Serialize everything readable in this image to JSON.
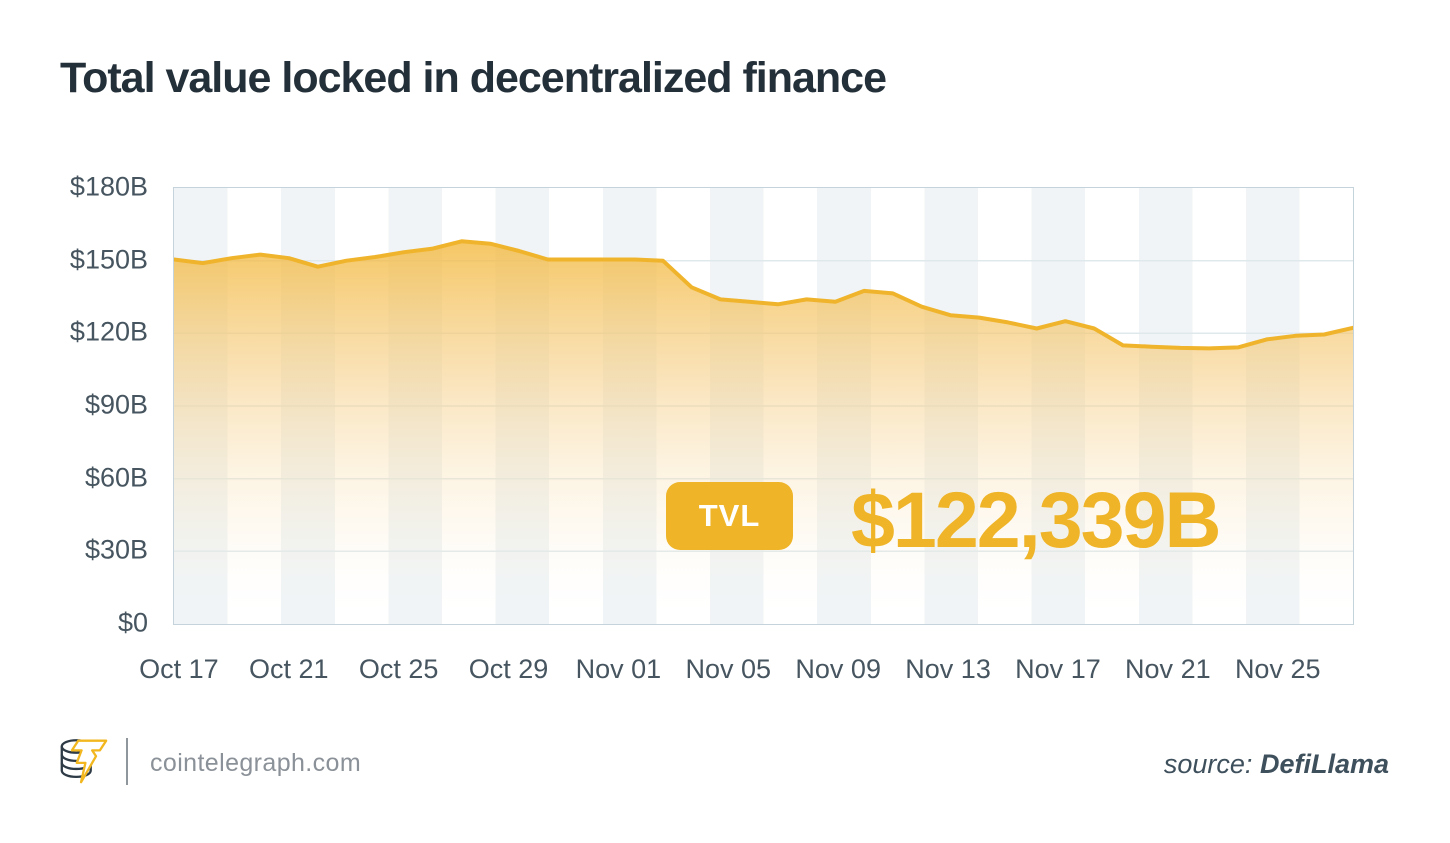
{
  "title": "Total value locked in decentralized finance",
  "callout": {
    "badge_label": "TVL",
    "value": "$122,339B"
  },
  "footer": {
    "brand": "cointelegraph.com",
    "source_label": "source:",
    "source_name": "DefiLlama"
  },
  "colors": {
    "accent_yellow": "#EFB428",
    "line_yellow": "#F0B42C",
    "title_text": "#243039",
    "axis_text": "#46555F",
    "stripe_band": "#F0F4F6",
    "grid_line": "#DFE9EC",
    "plot_border": "#C5D4DC",
    "footer_text": "#8B9198",
    "source_text": "#3F505D"
  },
  "chart_data": {
    "type": "area",
    "title": "Total value locked in decentralized finance",
    "xlabel": "",
    "ylabel": "",
    "ylim": [
      0,
      180
    ],
    "grid": "horizontal gridlines every 30B; alternating vertical background bands; boxed plot border",
    "legend_position": "none",
    "unit": "USD billions",
    "x": [
      "Oct 17",
      "Oct 18",
      "Oct 19",
      "Oct 20",
      "Oct 21",
      "Oct 22",
      "Oct 23",
      "Oct 24",
      "Oct 25",
      "Oct 26",
      "Oct 27",
      "Oct 28",
      "Oct 29",
      "Oct 30",
      "Oct 31",
      "Nov 01",
      "Nov 02",
      "Nov 03",
      "Nov 04",
      "Nov 05",
      "Nov 06",
      "Nov 07",
      "Nov 08",
      "Nov 09",
      "Nov 10",
      "Nov 11",
      "Nov 12",
      "Nov 13",
      "Nov 14",
      "Nov 15",
      "Nov 16",
      "Nov 17",
      "Nov 18",
      "Nov 19",
      "Nov 20",
      "Nov 21",
      "Nov 22",
      "Nov 23",
      "Nov 24",
      "Nov 25",
      "Nov 26",
      "Nov 27"
    ],
    "values": [
      150.5,
      149,
      151,
      152.5,
      151,
      147.5,
      150,
      151.5,
      153.5,
      155,
      158,
      157,
      154,
      150.5,
      150.5,
      150.5,
      150.5,
      150,
      139,
      134,
      133,
      132,
      134,
      133,
      137.5,
      136.5,
      131,
      127.5,
      126.5,
      124.5,
      122,
      125,
      122,
      115,
      114.5,
      114,
      113.8,
      114.2,
      117.5,
      119,
      119.5,
      122.3
    ],
    "latest_value_label": "$122,339B",
    "xticks": [
      "Oct 17",
      "Oct 21",
      "Oct 25",
      "Oct 29",
      "Nov 01",
      "Nov 05",
      "Nov 09",
      "Nov 13",
      "Nov 17",
      "Nov 21",
      "Nov 25"
    ],
    "yticks": [
      {
        "label": "$180B",
        "value": 180
      },
      {
        "label": "$150B",
        "value": 150
      },
      {
        "label": "$120B",
        "value": 120
      },
      {
        "label": "$90B",
        "value": 90
      },
      {
        "label": "$60B",
        "value": 60
      },
      {
        "label": "$30B",
        "value": 30
      },
      {
        "label": "$0",
        "value": 0
      }
    ]
  }
}
